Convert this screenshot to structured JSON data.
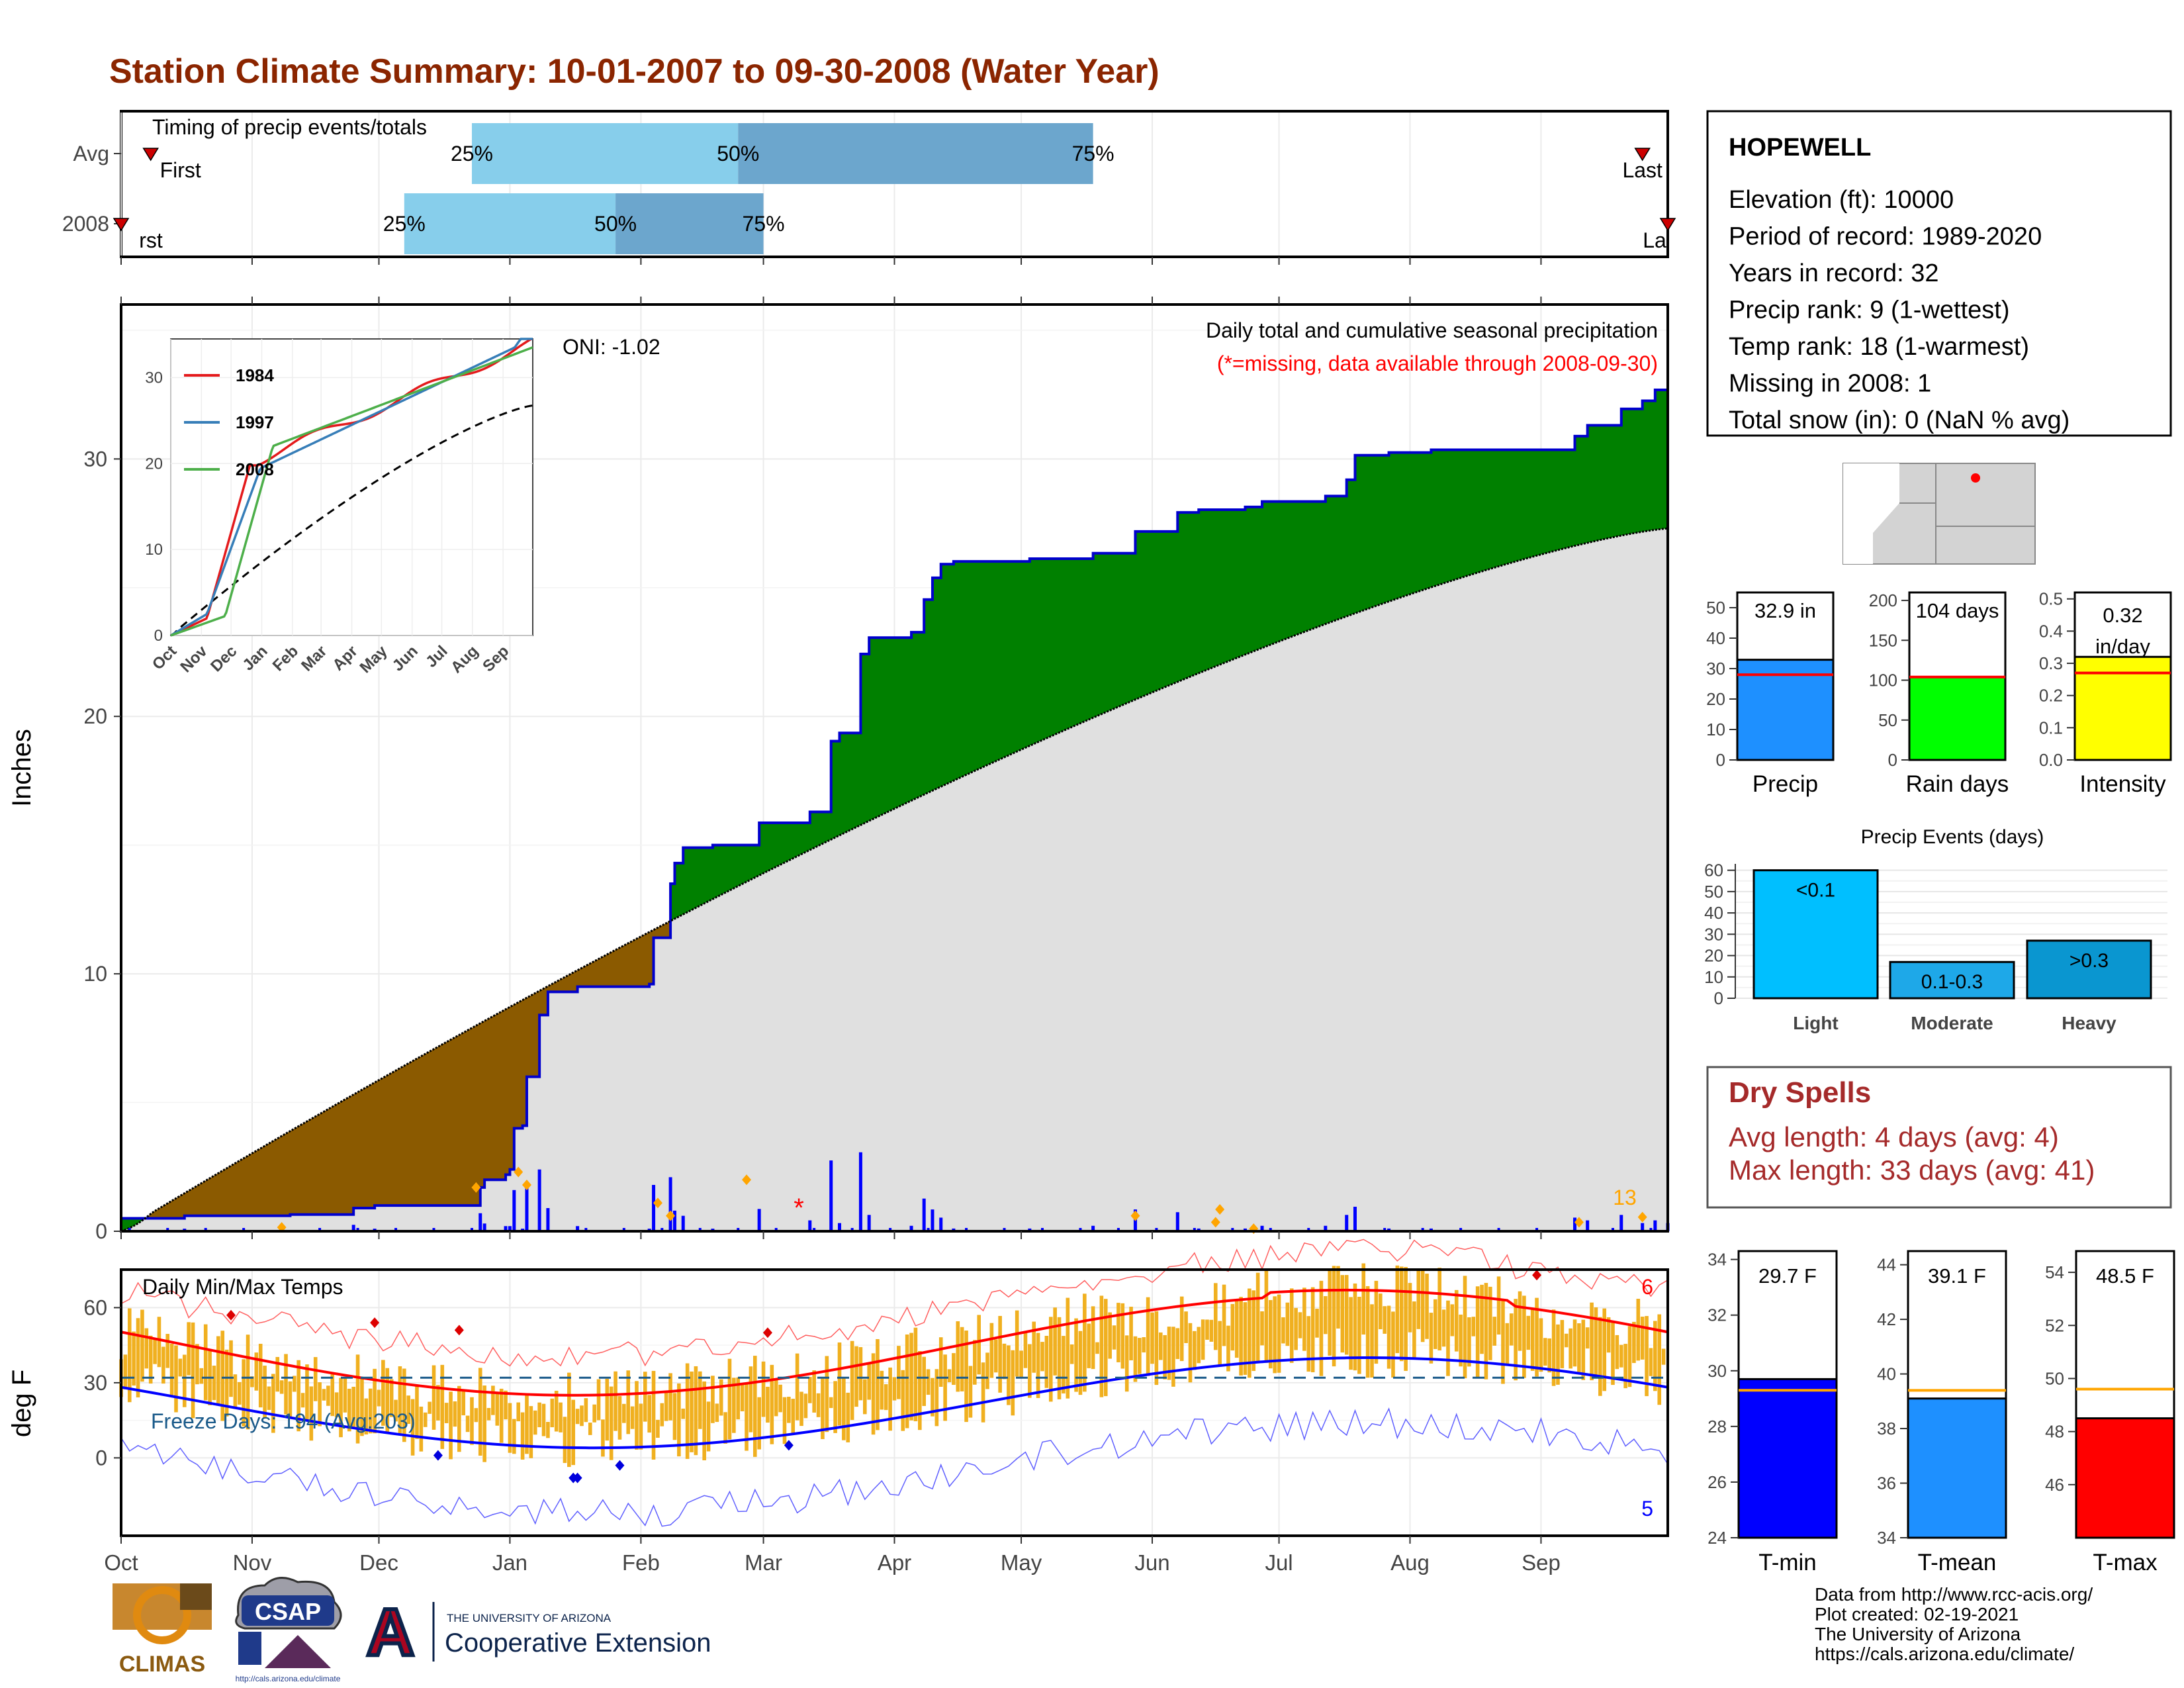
{
  "title": "Station Climate Summary: 10-01-2007 to 09-30-2008 (Water Year)",
  "colors": {
    "title": "#8B2500",
    "cum_2008": "#008000",
    "cum_avg": "#E0E0E0",
    "deficit": "#8B5A00",
    "cum_line": "#0000CD",
    "daily_bar": "#0000FF",
    "orange_marker": "#FFA500",
    "missing": "#FF0000",
    "temp_range": "#F0B020",
    "tmax_avg": "#FF0000",
    "tmin_avg": "#0000FF",
    "dry_spell_text": "#A52A2A",
    "precip_bar": "#1E90FF",
    "rain_bar": "#00FF00",
    "intensity_bar": "#FFFF00",
    "light_bar": "#00BFFF",
    "moderate_bar": "#1EA8E8",
    "heavy_bar": "#0A96D0",
    "tmin_bar": "#0000FF",
    "tmean_bar": "#1E90FF",
    "tmax_bar": "#FF0000"
  },
  "timing": {
    "title": "Timing of precip events/totals",
    "rows": [
      {
        "label": "Avg",
        "first": "First",
        "last": "Last",
        "p25": "25%",
        "p50": "50%",
        "p75": "75%",
        "d25": 83,
        "d50": 146,
        "d75": 230,
        "dfirst": 7,
        "dlast": 360
      },
      {
        "label": "2008",
        "first": "rst",
        "last": "La",
        "p25": "25%",
        "p50": "50%",
        "p75": "75%",
        "d25": 67,
        "d50": 117,
        "d75": 152,
        "dfirst": 0,
        "dlast": 366
      }
    ]
  },
  "main": {
    "ylabel": "Inches",
    "yticks": [
      0,
      10,
      20,
      30
    ],
    "ymax": 36,
    "oni": "ONI: -1.02",
    "caption1": "Daily total and cumulative seasonal precipitation",
    "caption2": "(*=missing, data available through 2008-09-30)",
    "count_label": "13",
    "missing_mark": "*"
  },
  "temps": {
    "title": "Daily Min/Max Temps",
    "ylabel": "deg F",
    "yticks": [
      0,
      30,
      60
    ],
    "freeze": "Freeze Days: 194 (Avg:203)",
    "count_max": "6",
    "count_min": "5"
  },
  "months": [
    "Oct",
    "Nov",
    "Dec",
    "Jan",
    "Feb",
    "Mar",
    "Apr",
    "May",
    "Jun",
    "Jul",
    "Aug",
    "Sep"
  ],
  "inset": {
    "legend": [
      "1984",
      "1997",
      "2008"
    ],
    "legend_colors": [
      "#E41A1C",
      "#377EB8",
      "#4DAF4A"
    ],
    "yticks": [
      0,
      10,
      20,
      30
    ],
    "months": [
      "Oct",
      "Nov",
      "Dec",
      "Jan",
      "Feb",
      "Mar",
      "Apr",
      "May",
      "Jun",
      "Jul",
      "Aug",
      "Sep"
    ]
  },
  "info": {
    "station": "HOPEWELL",
    "lines": [
      "Elevation (ft): 10000",
      "Period of record: 1989-2020",
      "Years in record: 32",
      "Precip rank: 9 (1-wettest)",
      "Temp rank: 18 (1-warmest)",
      "Missing in 2008: 1",
      "Total snow (in): 0 (NaN % avg)"
    ]
  },
  "mini_bars": [
    {
      "name": "precip",
      "label": "Precip",
      "value_text": "32.9 in",
      "value": 32.9,
      "avg": 28,
      "ymax": 55,
      "ticks": [
        0,
        10,
        20,
        30,
        40,
        50
      ]
    },
    {
      "name": "rain-days",
      "label": "Rain days",
      "value_text": "104 days",
      "value": 104,
      "avg": 104,
      "ymax": 210,
      "ticks": [
        0,
        50,
        100,
        150,
        200
      ]
    },
    {
      "name": "intensity",
      "label": "Intensity",
      "value_text": "0.32 in/day",
      "value": 0.32,
      "avg": 0.27,
      "ymax": 0.52,
      "ticks": [
        "0.0",
        "0.1",
        "0.2",
        "0.3",
        "0.4",
        "0.5"
      ]
    }
  ],
  "events": {
    "title": "Precip Events (days)",
    "ticks": [
      0,
      10,
      20,
      30,
      40,
      50,
      60
    ],
    "bars": [
      {
        "label": "Light",
        "tag": "<0.1",
        "value": 60
      },
      {
        "label": "Moderate",
        "tag": "0.1-0.3",
        "value": 17
      },
      {
        "label": "Heavy",
        "tag": ">0.3",
        "value": 27
      }
    ]
  },
  "dry": {
    "title": "Dry Spells",
    "avg": "Avg length: 4 days (avg: 4)",
    "max": "Max length: 33 days (avg: 41)"
  },
  "temp_bars": [
    {
      "name": "tmin",
      "label": "T-min",
      "value_text": "29.7 F",
      "value": 29.7,
      "avg": 29.3,
      "ymin": 24,
      "ymax": 34.3,
      "ticks": [
        24,
        26,
        28,
        30,
        32,
        34
      ]
    },
    {
      "name": "tmean",
      "label": "T-mean",
      "value_text": "39.1 F",
      "value": 39.1,
      "avg": 39.4,
      "ymin": 34,
      "ymax": 44.5,
      "ticks": [
        34,
        36,
        38,
        40,
        42,
        44
      ]
    },
    {
      "name": "tmax",
      "label": "T-max",
      "value_text": "48.5 F",
      "value": 48.5,
      "avg": 49.6,
      "ymin": 44,
      "ymax": 54.8,
      "ticks": [
        46,
        48,
        50,
        52,
        54
      ]
    }
  ],
  "logos": {
    "climas": "CLIMAS",
    "csap": "CSAP",
    "csap_url": "http://cals.arizona.edu/climate",
    "ua_small": "THE UNIVERSITY OF ARIZONA",
    "ua_big": "Cooperative Extension",
    "ua_letter": "A"
  },
  "credits": [
    "Data from http://www.rcc-acis.org/",
    "Plot created: 02-19-2021",
    "The University of Arizona",
    "https://cals.arizona.edu/climate/"
  ]
}
